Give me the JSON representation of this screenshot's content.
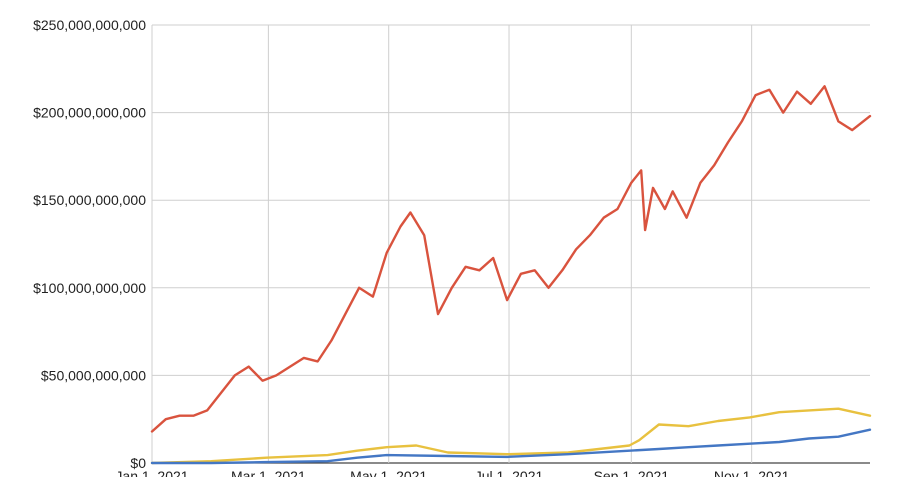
{
  "chart_data": {
    "type": "line",
    "title": "",
    "xlabel": "",
    "ylabel": "",
    "ylim": [
      0,
      250000000000
    ],
    "y_ticks": [
      0,
      50000000000,
      100000000000,
      150000000000,
      200000000000,
      250000000000
    ],
    "y_tick_labels": [
      "$0",
      "$50,000,000,000",
      "$100,000,000,000",
      "$150,000,000,000",
      "$200,000,000,000",
      "$250,000,000,000"
    ],
    "x_range": [
      "2021-01-01",
      "2021-12-31"
    ],
    "x_ticks": [
      "2021-01-01",
      "2021-03-01",
      "2021-05-01",
      "2021-07-01",
      "2021-09-01",
      "2021-11-01"
    ],
    "x_tick_labels": [
      "Jan 1, 2021",
      "Mar 1, 2021",
      "May 1, 2021",
      "Jul 1, 2021",
      "Sep 1, 2021",
      "Nov 1, 2021"
    ],
    "grid": true,
    "legend": "none",
    "series": [
      {
        "color": "#d9533e",
        "x": [
          "2021-01-01",
          "2021-01-08",
          "2021-01-15",
          "2021-01-22",
          "2021-01-29",
          "2021-02-05",
          "2021-02-12",
          "2021-02-19",
          "2021-02-26",
          "2021-03-05",
          "2021-03-12",
          "2021-03-19",
          "2021-03-26",
          "2021-04-02",
          "2021-04-09",
          "2021-04-16",
          "2021-04-23",
          "2021-04-30",
          "2021-05-07",
          "2021-05-12",
          "2021-05-19",
          "2021-05-26",
          "2021-06-02",
          "2021-06-09",
          "2021-06-16",
          "2021-06-23",
          "2021-06-30",
          "2021-07-07",
          "2021-07-14",
          "2021-07-21",
          "2021-07-28",
          "2021-08-04",
          "2021-08-11",
          "2021-08-18",
          "2021-08-25",
          "2021-09-01",
          "2021-09-06",
          "2021-09-08",
          "2021-09-12",
          "2021-09-18",
          "2021-09-22",
          "2021-09-29",
          "2021-10-06",
          "2021-10-13",
          "2021-10-20",
          "2021-10-27",
          "2021-11-03",
          "2021-11-10",
          "2021-11-17",
          "2021-11-24",
          "2021-12-01",
          "2021-12-08",
          "2021-12-15",
          "2021-12-22",
          "2021-12-31"
        ],
        "values": [
          18000000000,
          25000000000,
          27000000000,
          27000000000,
          30000000000,
          40000000000,
          50000000000,
          55000000000,
          47000000000,
          50000000000,
          55000000000,
          60000000000,
          58000000000,
          70000000000,
          85000000000,
          100000000000,
          95000000000,
          120000000000,
          135000000000,
          143000000000,
          130000000000,
          85000000000,
          100000000000,
          112000000000,
          110000000000,
          117000000000,
          93000000000,
          108000000000,
          110000000000,
          100000000000,
          110000000000,
          122000000000,
          130000000000,
          140000000000,
          145000000000,
          160000000000,
          167000000000,
          133000000000,
          157000000000,
          145000000000,
          155000000000,
          140000000000,
          160000000000,
          170000000000,
          183000000000,
          195000000000,
          210000000000,
          213000000000,
          200000000000,
          212000000000,
          205000000000,
          215000000000,
          195000000000,
          190000000000,
          198000000000
        ]
      },
      {
        "color": "#e8c13f",
        "x": [
          "2021-01-01",
          "2021-01-31",
          "2021-02-28",
          "2021-03-31",
          "2021-04-15",
          "2021-04-30",
          "2021-05-15",
          "2021-05-31",
          "2021-06-30",
          "2021-07-31",
          "2021-08-31",
          "2021-09-05",
          "2021-09-15",
          "2021-09-30",
          "2021-10-15",
          "2021-10-31",
          "2021-11-15",
          "2021-11-30",
          "2021-12-15",
          "2021-12-31"
        ],
        "values": [
          0,
          1000000000,
          3000000000,
          4500000000,
          7000000000,
          9000000000,
          10000000000,
          6000000000,
          5000000000,
          6000000000,
          10000000000,
          13000000000,
          22000000000,
          21000000000,
          24000000000,
          26000000000,
          29000000000,
          30000000000,
          31000000000,
          27000000000
        ]
      },
      {
        "color": "#4477c4",
        "x": [
          "2021-01-01",
          "2021-01-31",
          "2021-02-28",
          "2021-03-31",
          "2021-04-15",
          "2021-04-30",
          "2021-05-31",
          "2021-06-30",
          "2021-07-31",
          "2021-08-31",
          "2021-09-15",
          "2021-09-30",
          "2021-10-15",
          "2021-10-31",
          "2021-11-15",
          "2021-11-30",
          "2021-12-15",
          "2021-12-31"
        ],
        "values": [
          0,
          0,
          500000000,
          1000000000,
          3000000000,
          4500000000,
          4000000000,
          3500000000,
          5000000000,
          7000000000,
          8000000000,
          9000000000,
          10000000000,
          11000000000,
          12000000000,
          14000000000,
          15000000000,
          19000000000
        ]
      }
    ]
  }
}
